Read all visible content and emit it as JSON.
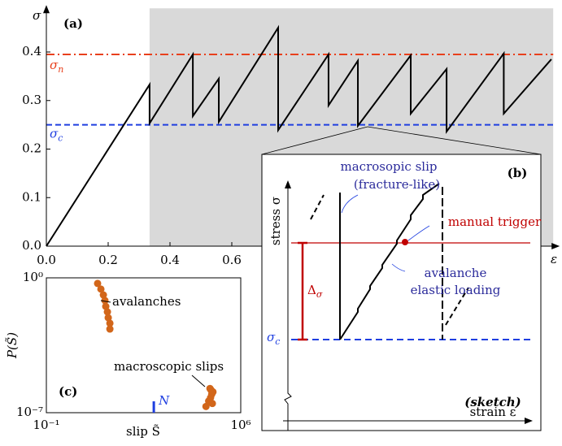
{
  "chart_data": [
    {
      "type": "line",
      "panel": "(a)",
      "ylabel": "σ",
      "xlabel": "ε",
      "xlim": [
        0,
        1.64
      ],
      "ylim": [
        0,
        0.49
      ],
      "xticks": [
        {
          "value": 0,
          "label": "0.0"
        },
        0.2,
        0.4,
        0.6
      ],
      "yticks": [
        {
          "value": 0,
          "label": "0.0"
        },
        0.1,
        0.2,
        0.3,
        0.4
      ],
      "shaded_xmin": 0.334,
      "shade_color": "#d9d9d9",
      "hlines": [
        {
          "value": 0.395,
          "label": "σ",
          "sub": "n",
          "color": "#e8401c",
          "style": "dashdot"
        },
        {
          "value": 0.25,
          "label": "σ",
          "sub": "c",
          "color": "#1f3fe0",
          "style": "dashed"
        }
      ],
      "series": [
        {
          "color": "#000000",
          "x": [
            0,
            0.334,
            0.334,
            0.474,
            0.474,
            0.558,
            0.558,
            0.75,
            0.75,
            0.913,
            0.913,
            1.008,
            1.008,
            1.179,
            1.179,
            1.295,
            1.295,
            1.48,
            1.48,
            1.634
          ],
          "values": [
            0,
            0.333,
            0.253,
            0.395,
            0.268,
            0.345,
            0.256,
            0.45,
            0.239,
            0.395,
            0.29,
            0.382,
            0.248,
            0.393,
            0.273,
            0.365,
            0.236,
            0.397,
            0.273,
            0.385
          ]
        }
      ]
    },
    {
      "type": "scatter",
      "panel": "(c)",
      "xlabel": "slip S̃",
      "ylabel": "P(S̃)",
      "log": true,
      "xlim": [
        0.1,
        1000000
      ],
      "ylim": [
        1e-07,
        1
      ],
      "xticks": [
        {
          "value": 0.1,
          "label": "10⁻¹"
        },
        {
          "value": 1000000,
          "label": "10⁶"
        }
      ],
      "yticks": [
        {
          "value": 1e-07,
          "label": "10⁻⁷"
        },
        {
          "value": 1,
          "label": "10⁰"
        }
      ],
      "series": [
        {
          "color": "#d2661a",
          "x": [
            7.0,
            9.2,
            11.3,
            12.9,
            13.8,
            15.8,
            16.9,
            19.4,
            19.4,
            56000,
            70000,
            78000,
            85000,
            90000,
            100000,
            82000,
            95000
          ],
          "values": [
            0.51,
            0.26,
            0.13,
            0.066,
            0.033,
            0.017,
            0.0085,
            0.0044,
            0.0022,
            2.1e-07,
            4e-07,
            1.8e-06,
            1.5e-06,
            9e-07,
            1.2e-06,
            6e-07,
            3e-07
          ]
        }
      ],
      "annotations": [
        "avalanches",
        "macroscopic slips"
      ],
      "marker": {
        "label": "N",
        "x": 740,
        "color": "#1f3fe0"
      }
    }
  ],
  "sketch": {
    "panel": "(b)",
    "slip_label": "macrosopic slip",
    "slip_sub": "(fracture-like)",
    "trigger": "manual trigger",
    "avalanche": "avalanche",
    "loading": "elastic loading",
    "delta": "Δ",
    "delta_sub": "σ",
    "sigma_c": "σ",
    "sigma_c_sub": "c",
    "ylabel": "stress σ",
    "xlabel": "strain ε",
    "note": "(sketch)"
  }
}
